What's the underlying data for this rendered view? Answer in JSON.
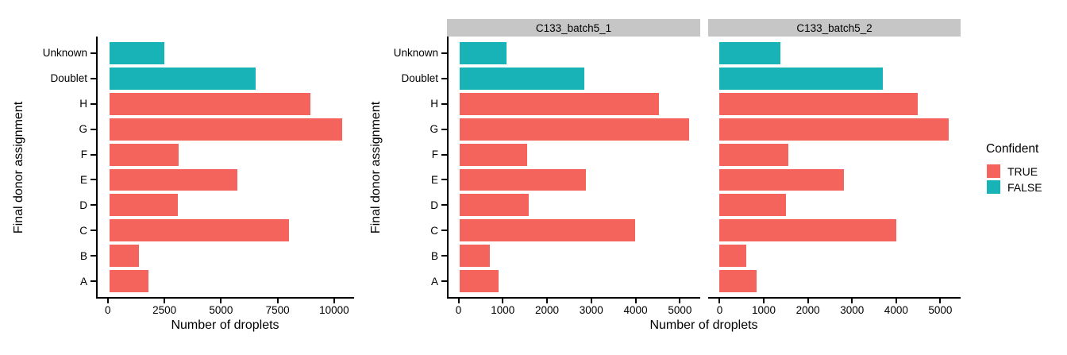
{
  "chart_data": {
    "type": "bar",
    "orientation": "horizontal",
    "xlabel": "Number of droplets",
    "ylabel": "Final donor assignment",
    "categories_top_to_bottom": [
      "Unknown",
      "Doublet",
      "H",
      "G",
      "F",
      "E",
      "D",
      "C",
      "B",
      "A"
    ],
    "confident_by_category": [
      false,
      false,
      true,
      true,
      true,
      true,
      true,
      true,
      true,
      true
    ],
    "colors": {
      "TRUE": "#F4635C",
      "FALSE": "#17B3B6"
    },
    "legend": {
      "title": "Confident",
      "entries": [
        "TRUE",
        "FALSE"
      ]
    },
    "grid": false,
    "panels": [
      {
        "title": "",
        "values": [
          2430,
          6490,
          8940,
          10340,
          3080,
          5690,
          3060,
          7980,
          1300,
          1740
        ],
        "xlim": [
          -520,
          10880
        ],
        "xticks": [
          0,
          2500,
          5000,
          7500,
          10000
        ]
      },
      {
        "title": "C133_batch5_1",
        "values": [
          1050,
          2820,
          4520,
          5200,
          1520,
          2870,
          1560,
          3980,
          680,
          870
        ],
        "xlim": [
          -260,
          5460
        ],
        "xticks": [
          0,
          1000,
          2000,
          3000,
          4000,
          5000
        ]
      },
      {
        "title": "C133_batch5_2",
        "values": [
          1370,
          3700,
          4480,
          5190,
          1560,
          2820,
          1500,
          4000,
          610,
          840
        ],
        "xlim": [
          -260,
          5460
        ],
        "xticks": [
          0,
          1000,
          2000,
          3000,
          4000,
          5000
        ]
      }
    ]
  }
}
